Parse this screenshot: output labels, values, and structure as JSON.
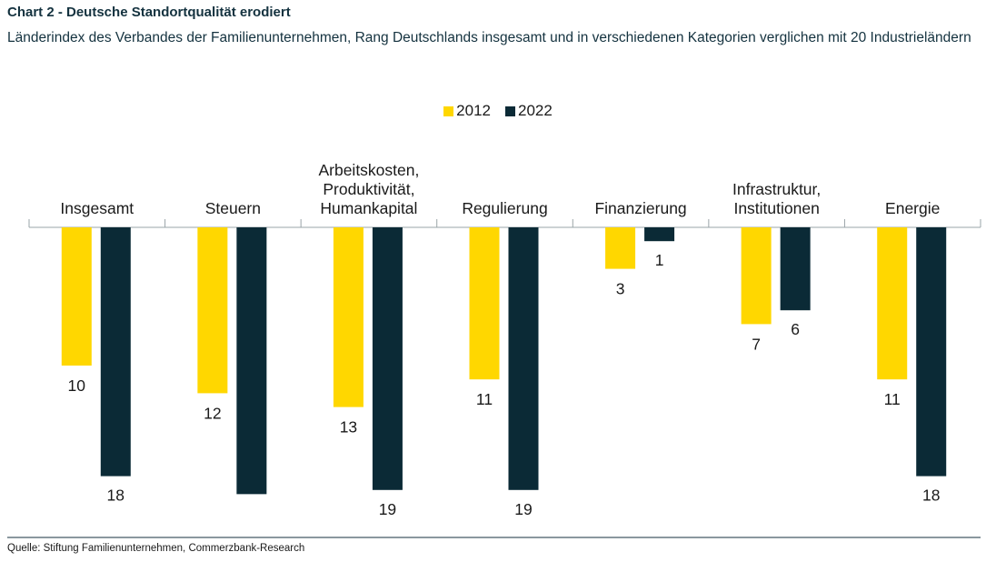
{
  "header": {
    "title": "Chart 2 - Deutsche Standortqualität erodiert",
    "subtitle": "Länderindex des Verbandes der Familienunternehmen, Rang Deutschlands insgesamt und in verschiedenen Kategorien verglichen mit 20 Industrieländern"
  },
  "legend": {
    "items": [
      {
        "label": "2012",
        "color": "#FFD700"
      },
      {
        "label": "2022",
        "color": "#0B2A36"
      }
    ]
  },
  "chart_data": {
    "type": "bar",
    "orientation": "vertical-downward",
    "title": "Chart 2 - Deutsche Standortqualität erodiert",
    "categories": [
      [
        "Insgesamt"
      ],
      [
        "Steuern"
      ],
      [
        "Arbeitskosten,",
        "Produktivität,",
        "Humankapital"
      ],
      [
        "Regulierung"
      ],
      [
        "Finanzierung"
      ],
      [
        "Infrastruktur,",
        "Institutionen"
      ],
      [
        "Energie"
      ]
    ],
    "series": [
      {
        "name": "2012",
        "color": "#FFD700",
        "values": [
          10,
          12,
          13,
          11,
          3,
          7,
          11
        ]
      },
      {
        "name": "2022",
        "color": "#0B2A36",
        "values": [
          18,
          null,
          19,
          19,
          1,
          6,
          18
        ]
      }
    ],
    "data_labels": {
      "2012": [
        "10",
        "12",
        "13",
        "11",
        "3",
        "7",
        "11"
      ],
      "2022": [
        "18",
        "",
        "19",
        "19",
        "1",
        "6",
        "18"
      ]
    },
    "note": "Steuern 2022 bar shown without data label",
    "steuern_2022_bar_value": 19.3,
    "ylim": [
      0,
      20
    ],
    "legend_position": "top-center"
  },
  "footer": {
    "source": "Quelle: Stiftung Familienunternehmen, Commerzbank-Research"
  }
}
